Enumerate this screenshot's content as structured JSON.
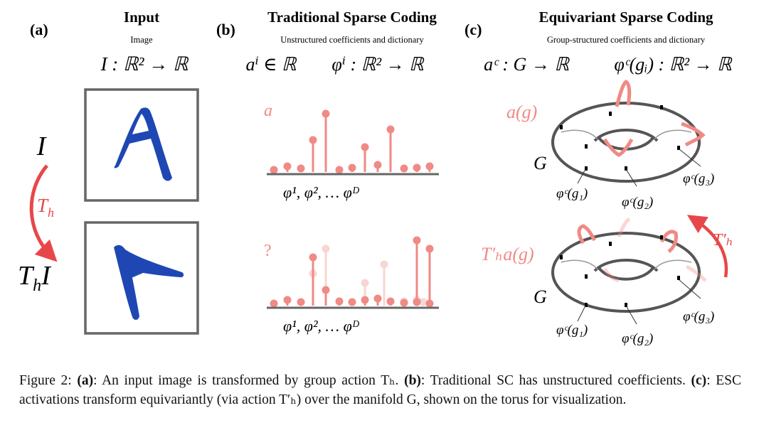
{
  "panels": {
    "a": {
      "label": "(a)",
      "title": "Input",
      "subtitle": "Image",
      "formula": "I : ℝ² → ℝ",
      "symbol_I": "I",
      "transform": "T",
      "transform_sub": "h",
      "result_T": "T",
      "result_sub": "h",
      "result_I": "I",
      "image_glyph": "A"
    },
    "b": {
      "label": "(b)",
      "title": "Traditional Sparse Coding",
      "subtitle": "Unstructured coefficients and dictionary",
      "formula_left": "aⁱ ∈ ℝ",
      "formula_right": "φⁱ : ℝ² → ℝ",
      "top_label": "a",
      "bottom_label": "?",
      "axis_labels_top": "φ¹, φ²,    …    φᴰ",
      "axis_labels_bottom": "φ¹, φ²,    …    φᴰ"
    },
    "c": {
      "label": "(c)",
      "title": "Equivariant Sparse Coding",
      "subtitle": "Group-structured coefficients and dictionary",
      "formula_left": "aᶜ : G → ℝ",
      "formula_right": "φᶜ(gᵢ) : ℝ² → ℝ",
      "top_label": "a(g)",
      "bottom_label": "T′ₕa(g)",
      "manifold": "G",
      "g1": "φᶜ(g₁)",
      "g2": "φᶜ(g₂)",
      "g3": "φᶜ(g₃)",
      "transform": "T′ₕ"
    }
  },
  "caption": {
    "prefix": "Figure 2: ",
    "a_tag": "(a)",
    "a_text": ": An input image is transformed by group action Tₕ. ",
    "b_tag": "(b)",
    "b_text": ": Traditional SC has unstructured coefficients. ",
    "c_tag": "(c)",
    "c_text": ": ESC activations transform equivariantly (via action T′ₕ) over the manifold G, shown on the torus for visualization."
  },
  "colors": {
    "blue": "#1f47b4",
    "salmon": "#f08a84",
    "red_arrow": "#e8474a",
    "gray": "#555555"
  }
}
